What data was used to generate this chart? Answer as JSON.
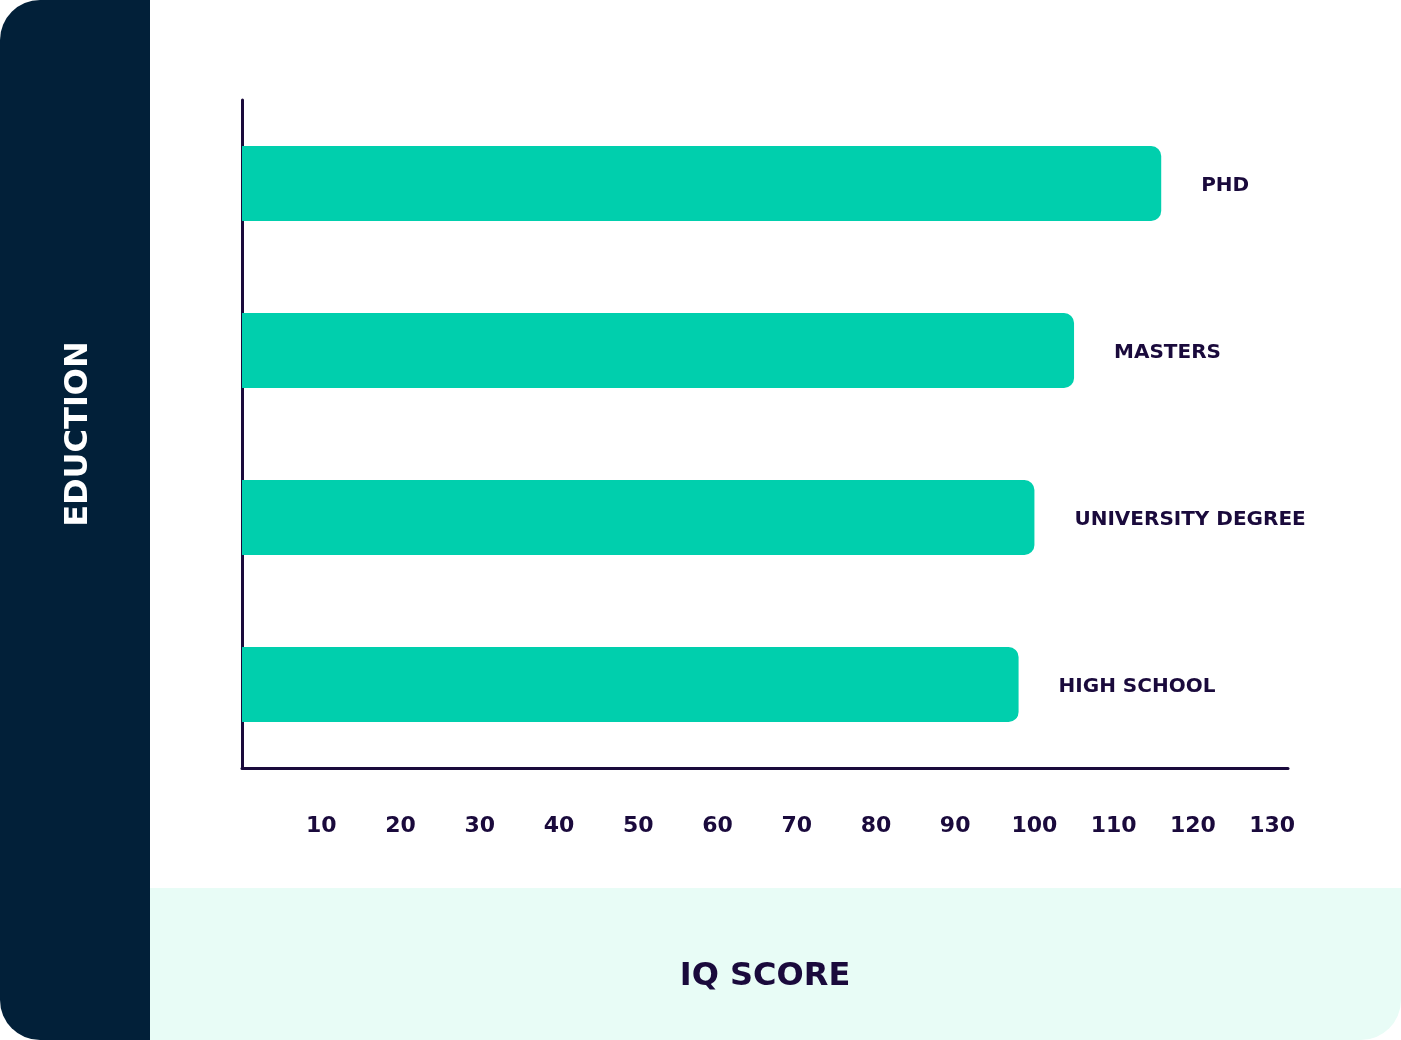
{
  "chart_data": {
    "type": "bar",
    "orientation": "horizontal",
    "xlabel": "IQ SCORE",
    "ylabel": "EDUCTION",
    "categories": [
      "PHD",
      "MASTERS",
      "UNIVERSITY DEGREE",
      "HIGH SCHOOL"
    ],
    "values": [
      116,
      105,
      100,
      98
    ],
    "color": "#00cfad",
    "xlim": [
      0,
      132
    ],
    "xticks": [
      10,
      20,
      30,
      40,
      50,
      60,
      70,
      80,
      90,
      100,
      110,
      120,
      130
    ],
    "grid": false
  }
}
